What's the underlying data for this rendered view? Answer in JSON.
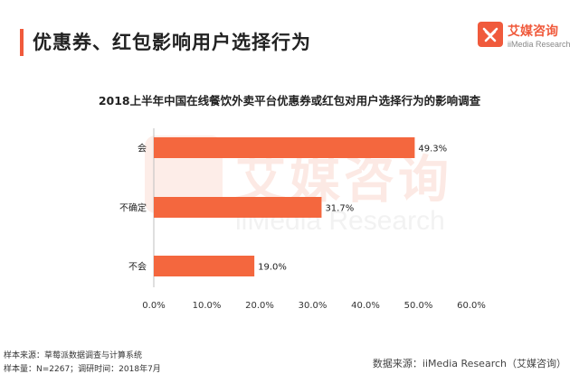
{
  "header": {
    "title": "优惠券、红包影响用户选择行为"
  },
  "logo": {
    "name": "艾媒咨询",
    "sub": "iiMedia Research",
    "icon": "ai-media-logo-icon",
    "color": "#f05a3c"
  },
  "watermark": {
    "name": "艾媒咨询",
    "sub": "iiMedia Research"
  },
  "chart_data": {
    "type": "bar",
    "orientation": "horizontal",
    "title": "2018上半年中国在线餐饮外卖平台优惠券或红包对用户选择行为的影响调查",
    "categories": [
      "会",
      "不确定",
      "不会"
    ],
    "values": [
      49.3,
      31.7,
      19.0
    ],
    "value_labels": [
      "49.3%",
      "31.7%",
      "19.0%"
    ],
    "xlim": [
      0,
      60
    ],
    "xticks": [
      0,
      10,
      20,
      30,
      40,
      50,
      60
    ],
    "xtick_labels": [
      "0.0%",
      "10.0%",
      "20.0%",
      "30.0%",
      "40.0%",
      "50.0%",
      "60.0%"
    ],
    "bar_color": "#f4673e",
    "grid": false,
    "legend": "none"
  },
  "footer": {
    "source": "样本来源：草莓派数据调查与计算系统",
    "sample": "样本量：N=2267；调研时间：2018年7月",
    "credit": "数据来源：iiMedia Research（艾媒咨询）"
  }
}
